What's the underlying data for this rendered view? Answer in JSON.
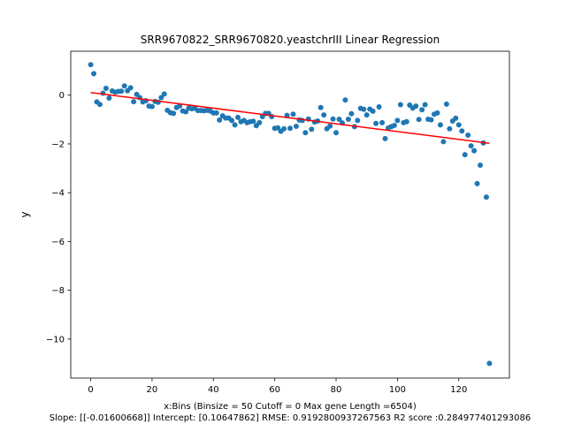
{
  "chart_data": {
    "type": "scatter",
    "title": "SRR9670822_SRR9670820.yeastchrIII Linear Regression",
    "xlabel": "x:Bins  (Binsize = 50 Cutoff = 0 Max gene Length =6504)",
    "ylabel": "y",
    "footer": "Slope: [[-0.01600668]] Intercept: [0.10647862] RMSE: 0.9192800937267563 R2 score :0.284977401293086",
    "xlim": [
      -6.5,
      136.5
    ],
    "ylim": [
      -11.6,
      1.8
    ],
    "xticks": [
      0,
      20,
      40,
      60,
      80,
      100,
      120
    ],
    "yticks": [
      0,
      -2,
      -4,
      -6,
      -8,
      -10
    ],
    "grid": false,
    "points_color": "#1f77b4",
    "line_color": "#ff0000",
    "regression": {
      "slope": -0.01600668,
      "intercept": 0.10647862,
      "x_range": [
        0,
        130
      ]
    },
    "points": [
      [
        0,
        1.25
      ],
      [
        1,
        0.88
      ],
      [
        2,
        -0.28
      ],
      [
        3,
        -0.38
      ],
      [
        4,
        0.08
      ],
      [
        5,
        0.28
      ],
      [
        6,
        -0.12
      ],
      [
        7,
        0.17
      ],
      [
        8,
        0.12
      ],
      [
        9,
        0.15
      ],
      [
        10,
        0.16
      ],
      [
        11,
        0.38
      ],
      [
        12,
        0.18
      ],
      [
        13,
        0.3
      ],
      [
        14,
        -0.27
      ],
      [
        15,
        0.03
      ],
      [
        16,
        -0.1
      ],
      [
        17,
        -0.28
      ],
      [
        18,
        -0.23
      ],
      [
        19,
        -0.45
      ],
      [
        20,
        -0.47
      ],
      [
        21,
        -0.26
      ],
      [
        22,
        -0.29
      ],
      [
        23,
        -0.1
      ],
      [
        24,
        0.05
      ],
      [
        25,
        -0.62
      ],
      [
        26,
        -0.72
      ],
      [
        27,
        -0.75
      ],
      [
        28,
        -0.51
      ],
      [
        29,
        -0.44
      ],
      [
        30,
        -0.65
      ],
      [
        31,
        -0.68
      ],
      [
        32,
        -0.53
      ],
      [
        33,
        -0.56
      ],
      [
        34,
        -0.54
      ],
      [
        35,
        -0.63
      ],
      [
        36,
        -0.63
      ],
      [
        37,
        -0.64
      ],
      [
        38,
        -0.62
      ],
      [
        39,
        -0.65
      ],
      [
        40,
        -0.73
      ],
      [
        41,
        -0.73
      ],
      [
        42,
        -1.02
      ],
      [
        43,
        -0.85
      ],
      [
        44,
        -0.94
      ],
      [
        45,
        -0.94
      ],
      [
        46,
        -1.04
      ],
      [
        47,
        -1.22
      ],
      [
        48,
        -0.91
      ],
      [
        49,
        -1.09
      ],
      [
        50,
        -1.04
      ],
      [
        51,
        -1.13
      ],
      [
        52,
        -1.09
      ],
      [
        53,
        -1.07
      ],
      [
        54,
        -1.25
      ],
      [
        55,
        -1.13
      ],
      [
        56,
        -0.88
      ],
      [
        57,
        -0.75
      ],
      [
        58,
        -0.75
      ],
      [
        59,
        -0.88
      ],
      [
        60,
        -1.36
      ],
      [
        61,
        -1.34
      ],
      [
        62,
        -1.48
      ],
      [
        63,
        -1.38
      ],
      [
        64,
        -0.83
      ],
      [
        65,
        -1.36
      ],
      [
        66,
        -0.78
      ],
      [
        67,
        -1.28
      ],
      [
        68,
        -1.02
      ],
      [
        69,
        -1.04
      ],
      [
        70,
        -1.54
      ],
      [
        71,
        -0.98
      ],
      [
        72,
        -1.4
      ],
      [
        73,
        -1.1
      ],
      [
        74,
        -1.06
      ],
      [
        75,
        -0.51
      ],
      [
        76,
        -0.81
      ],
      [
        77,
        -1.38
      ],
      [
        78,
        -1.27
      ],
      [
        79,
        -0.98
      ],
      [
        80,
        -1.54
      ],
      [
        81,
        -0.99
      ],
      [
        82,
        -1.14
      ],
      [
        83,
        -0.2
      ],
      [
        84,
        -0.99
      ],
      [
        85,
        -0.76
      ],
      [
        86,
        -1.29
      ],
      [
        87,
        -1.04
      ],
      [
        88,
        -0.54
      ],
      [
        89,
        -0.58
      ],
      [
        90,
        -0.81
      ],
      [
        91,
        -0.57
      ],
      [
        92,
        -0.66
      ],
      [
        93,
        -1.16
      ],
      [
        94,
        -0.48
      ],
      [
        95,
        -1.13
      ],
      [
        96,
        -1.78
      ],
      [
        97,
        -1.35
      ],
      [
        98,
        -1.29
      ],
      [
        99,
        -1.24
      ],
      [
        100,
        -1.04
      ],
      [
        101,
        -0.39
      ],
      [
        102,
        -1.13
      ],
      [
        103,
        -1.09
      ],
      [
        104,
        -0.41
      ],
      [
        105,
        -0.53
      ],
      [
        106,
        -0.45
      ],
      [
        107,
        -1.0
      ],
      [
        108,
        -0.6
      ],
      [
        109,
        -0.39
      ],
      [
        110,
        -0.99
      ],
      [
        111,
        -1.01
      ],
      [
        112,
        -0.78
      ],
      [
        113,
        -0.73
      ],
      [
        114,
        -1.22
      ],
      [
        115,
        -1.91
      ],
      [
        116,
        -0.37
      ],
      [
        117,
        -1.38
      ],
      [
        118,
        -1.06
      ],
      [
        119,
        -0.95
      ],
      [
        120,
        -1.22
      ],
      [
        121,
        -1.47
      ],
      [
        122,
        -2.44
      ],
      [
        123,
        -1.64
      ],
      [
        124,
        -2.08
      ],
      [
        125,
        -2.28
      ],
      [
        126,
        -3.63
      ],
      [
        127,
        -2.87
      ],
      [
        128,
        -1.96
      ],
      [
        129,
        -4.18
      ],
      [
        130,
        -11.0
      ]
    ]
  }
}
